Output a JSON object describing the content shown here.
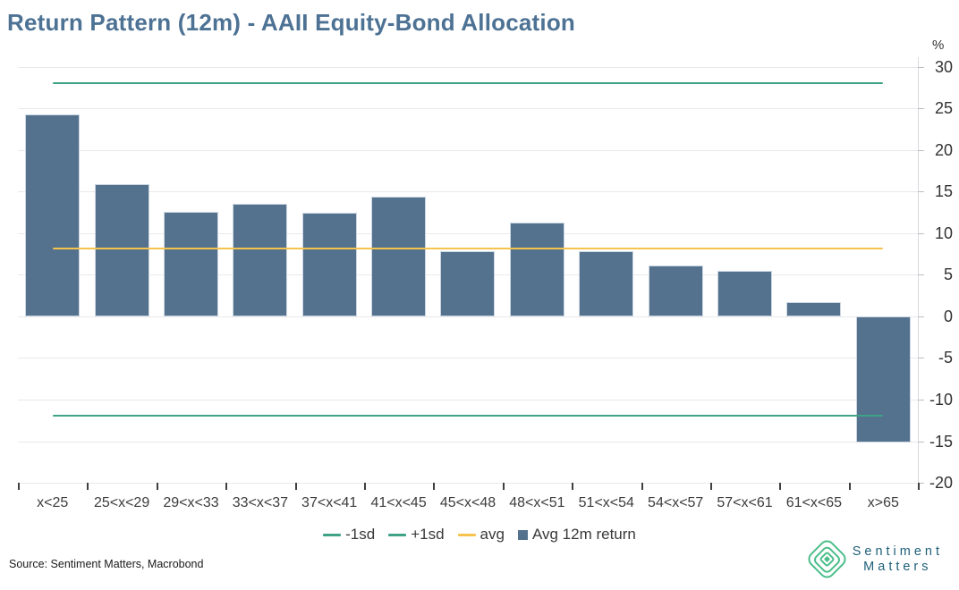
{
  "title": "Return Pattern (12m) - AAII Equity-Bond Allocation",
  "y_axis": {
    "unit_label": "%"
  },
  "chart_data": {
    "type": "bar",
    "title": "Return Pattern (12m) - AAII Equity-Bond Allocation",
    "xlabel": "",
    "ylabel": "%",
    "ylim": [
      -20,
      31
    ],
    "grid": true,
    "legend_position": "bottom",
    "bar_color": "#54718D",
    "categories": [
      "x<25",
      "25<x<29",
      "29<x<33",
      "33<x<37",
      "37<x<41",
      "41<x<45",
      "45<x<48",
      "48<x<51",
      "51<x<54",
      "54<x<57",
      "57<x<61",
      "61<x<65",
      "x>65"
    ],
    "series": [
      {
        "name": "Avg 12m return",
        "values": [
          24.3,
          15.9,
          12.5,
          13.5,
          12.4,
          14.4,
          7.8,
          11.3,
          7.8,
          6.1,
          5.5,
          1.7,
          -15.2
        ],
        "color": "#54718D"
      }
    ],
    "reference_lines": [
      {
        "name": "-1sd",
        "value": -11.9,
        "color": "#3EA287"
      },
      {
        "name": "+1sd",
        "value": 28.0,
        "color": "#3EA287"
      },
      {
        "name": "avg",
        "value": 8.1,
        "color": "#F7C34F"
      }
    ],
    "y_ticks": [
      30,
      25,
      20,
      15,
      10,
      5,
      0,
      -5,
      -10,
      -15,
      -20
    ]
  },
  "legend": {
    "items": [
      {
        "label": "-1sd",
        "marker": "line",
        "color": "#3EA287"
      },
      {
        "label": "+1sd",
        "marker": "line",
        "color": "#3EA287"
      },
      {
        "label": "avg",
        "marker": "line",
        "color": "#F7C34F"
      },
      {
        "label": "Avg 12m return",
        "marker": "square",
        "color": "#54718D"
      }
    ]
  },
  "footer": {
    "source": "Source: Sentiment Matters, Macrobond",
    "logo_line1": "Sentiment",
    "logo_line2": "Matters"
  },
  "colors": {
    "title": "#4D7294",
    "bar": "#54718D",
    "bar_edge": "#CBD6E2",
    "sd_line": "#3EA287",
    "avg_line": "#F7C34F",
    "grid": "#E9E9ED",
    "logo_green": "#4CBE8A",
    "logo_text": "#1E5F78"
  }
}
